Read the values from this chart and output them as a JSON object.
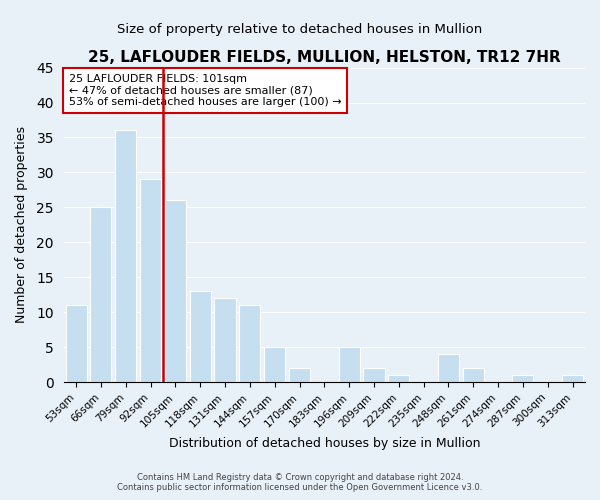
{
  "title": "25, LAFLOUDER FIELDS, MULLION, HELSTON, TR12 7HR",
  "subtitle": "Size of property relative to detached houses in Mullion",
  "xlabel": "Distribution of detached houses by size in Mullion",
  "ylabel": "Number of detached properties",
  "categories": [
    "53sqm",
    "66sqm",
    "79sqm",
    "92sqm",
    "105sqm",
    "118sqm",
    "131sqm",
    "144sqm",
    "157sqm",
    "170sqm",
    "183sqm",
    "196sqm",
    "209sqm",
    "222sqm",
    "235sqm",
    "248sqm",
    "261sqm",
    "274sqm",
    "287sqm",
    "300sqm",
    "313sqm"
  ],
  "values": [
    11,
    25,
    36,
    29,
    26,
    13,
    12,
    11,
    5,
    2,
    0,
    5,
    2,
    1,
    0,
    4,
    2,
    0,
    1,
    0,
    1
  ],
  "bar_color": "#c5dff0",
  "bar_edge_color": "#ffffff",
  "vline_x": 4,
  "vline_color": "#cc0000",
  "annotation_title": "25 LAFLOUDER FIELDS: 101sqm",
  "annotation_line1": "← 47% of detached houses are smaller (87)",
  "annotation_line2": "53% of semi-detached houses are larger (100) →",
  "annotation_box_edge_color": "#cc0000",
  "annotation_box_face_color": "#ffffff",
  "ylim": [
    0,
    45
  ],
  "background_color": "#e8f0f8",
  "footer1": "Contains HM Land Registry data © Crown copyright and database right 2024.",
  "footer2": "Contains public sector information licensed under the Open Government Licence v3.0."
}
